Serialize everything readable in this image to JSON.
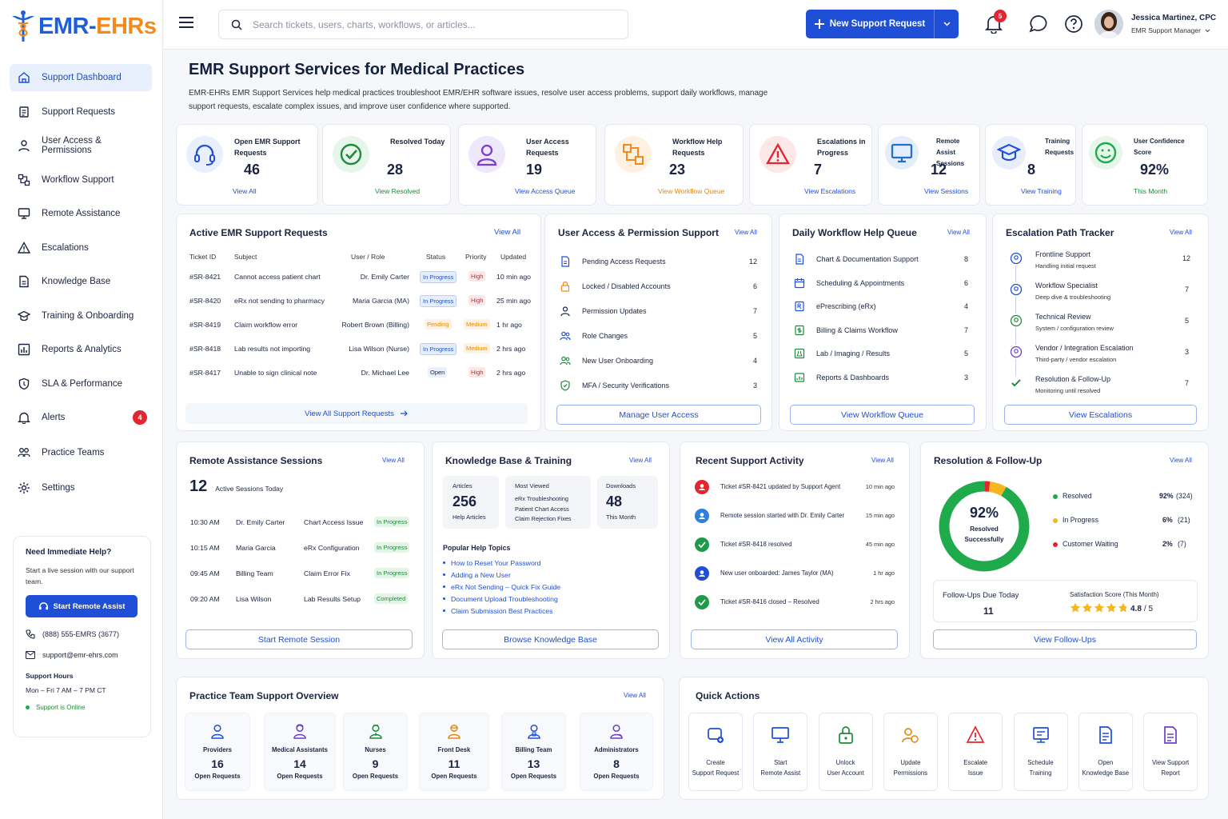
{
  "brand": {
    "name_a": "EMR-",
    "name_b": "EHRs"
  },
  "colors": {
    "primary": "#1f4fd6",
    "accent": "#f28a1e",
    "success": "#1faa4b",
    "danger": "#e3252f",
    "warning": "#f5b71f"
  },
  "sidebar": {
    "items": [
      {
        "label": "Support Dashboard",
        "icon": "home-icon"
      },
      {
        "label": "Support Requests",
        "icon": "clipboard-icon"
      },
      {
        "label": "User Access & Permissions",
        "icon": "user-icon"
      },
      {
        "label": "Workflow Support",
        "icon": "workflow-icon"
      },
      {
        "label": "Remote Assistance",
        "icon": "monitor-icon"
      },
      {
        "label": "Escalations",
        "icon": "warning-icon"
      },
      {
        "label": "Knowledge Base",
        "icon": "document-icon"
      },
      {
        "label": "Training & Onboarding",
        "icon": "graduation-icon"
      },
      {
        "label": "Reports & Analytics",
        "icon": "chart-icon"
      },
      {
        "label": "SLA & Performance",
        "icon": "shield-icon"
      },
      {
        "label": "Alerts",
        "icon": "bell-icon",
        "badge": "4"
      },
      {
        "label": "Practice Teams",
        "icon": "team-icon"
      },
      {
        "label": "Settings",
        "icon": "gear-icon"
      }
    ],
    "help": {
      "title": "Need Immediate Help?",
      "text": "Start a live session with our support team.",
      "button": "Start Remote Assist",
      "phone": "(888) 555-EMRS (3677)",
      "email": "support@emr-ehrs.com",
      "hours_title": "Support Hours",
      "hours": "Mon – Fri 7 AM – 7 PM CT",
      "status": "Support is Online"
    }
  },
  "topbar": {
    "search_placeholder": "Search tickets, users, charts, workflows, or articles...",
    "new_request": "New Support Request",
    "notifications": "5",
    "user_name": "Jessica Martinez, CPC",
    "user_role": "EMR Support Manager"
  },
  "page": {
    "title": "EMR Support Services for Medical Practices",
    "description": "EMR-EHRs EMR Support Services help medical practices troubleshoot EMR/EHR software issues, resolve user access problems, support daily workflows, manage support requests, escalate complex issues, and improve user confidence where supported."
  },
  "kpis": [
    {
      "label": "Open EMR Support Requests",
      "value": "46",
      "link": "View All",
      "color": "#1f4fd6"
    },
    {
      "label": "Resolved Today",
      "value": "28",
      "link": "View Resolved",
      "color": "#1f8a3b"
    },
    {
      "label": "User Access Requests",
      "value": "19",
      "link": "View Access Queue",
      "color": "#1f4fd6"
    },
    {
      "label": "Workflow Help Requests",
      "value": "23",
      "link": "View Workflow Queue",
      "color": "#e08a10"
    },
    {
      "label": "Escalations in Progress",
      "value": "7",
      "link": "View Escalations",
      "color": "#1f4fd6"
    },
    {
      "label": "Remote Assist Sessions",
      "value": "12",
      "link": "View Sessions",
      "color": "#1f4fd6"
    },
    {
      "label": "Training Requests",
      "value": "8",
      "link": "View Training",
      "color": "#1f4fd6"
    },
    {
      "label": "User Confidence Score",
      "value": "92%",
      "link": "This Month",
      "color": "#1f8a3b"
    }
  ],
  "active_requests": {
    "title": "Active EMR Support Requests",
    "view_all": "View All",
    "headers": [
      "Ticket ID",
      "Subject",
      "User / Role",
      "Status",
      "Priority",
      "Updated"
    ],
    "rows": [
      {
        "id": "#SR-8421",
        "subject": "Cannot access patient chart",
        "user": "Dr. Emily Carter",
        "status": "In Progress",
        "priority": "High",
        "updated": "10 min ago"
      },
      {
        "id": "#SR-8420",
        "subject": "eRx not sending to pharmacy",
        "user": "Maria Garcia (MA)",
        "status": "In Progress",
        "priority": "High",
        "updated": "25 min ago"
      },
      {
        "id": "#SR-8419",
        "subject": "Claim workflow error",
        "user": "Robert Brown (Billing)",
        "status": "Pending",
        "priority": "Medium",
        "updated": "1 hr ago"
      },
      {
        "id": "#SR-8418",
        "subject": "Lab results not importing",
        "user": "Lisa Wilson (Nurse)",
        "status": "In Progress",
        "priority": "Medium",
        "updated": "2 hrs ago"
      },
      {
        "id": "#SR-8417",
        "subject": "Unable to sign clinical note",
        "user": "Dr. Michael Lee",
        "status": "Open",
        "priority": "High",
        "updated": "2 hrs ago"
      }
    ],
    "footer": "View All Support Requests"
  },
  "access": {
    "title": "User Access & Permission Support",
    "view_all": "View All",
    "items": [
      {
        "label": "Pending Access Requests",
        "value": "12"
      },
      {
        "label": "Locked / Disabled Accounts",
        "value": "6"
      },
      {
        "label": "Permission Updates",
        "value": "7"
      },
      {
        "label": "Role Changes",
        "value": "5"
      },
      {
        "label": "New User Onboarding",
        "value": "4"
      },
      {
        "label": "MFA / Security Verifications",
        "value": "3"
      }
    ],
    "button": "Manage User Access"
  },
  "workflow": {
    "title": "Daily Workflow Help Queue",
    "view_all": "View All",
    "items": [
      {
        "label": "Chart & Documentation Support",
        "value": "8"
      },
      {
        "label": "Scheduling & Appointments",
        "value": "6"
      },
      {
        "label": "ePrescribing (eRx)",
        "value": "4"
      },
      {
        "label": "Billing & Claims Workflow",
        "value": "7"
      },
      {
        "label": "Lab / Imaging / Results",
        "value": "5"
      },
      {
        "label": "Reports & Dashboards",
        "value": "3"
      }
    ],
    "button": "View Workflow Queue"
  },
  "escalation": {
    "title": "Escalation Path Tracker",
    "view_all": "View All",
    "items": [
      {
        "label": "Frontline Support",
        "sub": "Handling initial request",
        "value": "12"
      },
      {
        "label": "Workflow Specialist",
        "sub": "Deep dive & troubleshooting",
        "value": "7"
      },
      {
        "label": "Technical Review",
        "sub": "System / configuration review",
        "value": "5"
      },
      {
        "label": "Vendor / Integration Escalation",
        "sub": "Third-party / vendor escalation",
        "value": "3"
      },
      {
        "label": "Resolution & Follow-Up",
        "sub": "Monitoring until resolved",
        "value": "7"
      }
    ],
    "button": "View Escalations"
  },
  "remote": {
    "title": "Remote Assistance Sessions",
    "view_all": "View All",
    "count": "12",
    "count_label": "Active Sessions Today",
    "rows": [
      {
        "time": "10:30 AM",
        "user": "Dr. Emily Carter",
        "topic": "Chart Access Issue",
        "status": "In Progress"
      },
      {
        "time": "10:15 AM",
        "user": "Maria Garcia",
        "topic": "eRx Configuration",
        "status": "In Progress"
      },
      {
        "time": "09:45 AM",
        "user": "Billing Team",
        "topic": "Claim Error Fix",
        "status": "In Progress"
      },
      {
        "time": "09:20 AM",
        "user": "Lisa Wilson",
        "topic": "Lab Results Setup",
        "status": "Completed"
      }
    ],
    "button": "Start Remote Session"
  },
  "kb": {
    "title": "Knowledge Base & Training",
    "view_all": "View All",
    "articles": {
      "label": "Articles",
      "value": "256",
      "sub": "Help Articles"
    },
    "most_viewed": {
      "label": "Most Viewed",
      "items": [
        "eRx Troubleshooting",
        "Patient Chart Access",
        "Claim Rejection Fixes"
      ]
    },
    "downloads": {
      "label": "Downloads",
      "value": "48",
      "sub": "This Month"
    },
    "topics_title": "Popular Help Topics",
    "topics": [
      "How to Reset Your Password",
      "Adding a New User",
      "eRx Not Sending – Quick Fix Guide",
      "Document Upload Troubleshooting",
      "Claim Submission Best Practices"
    ],
    "button": "Browse Knowledge Base"
  },
  "activity": {
    "title": "Recent Support Activity",
    "view_all": "View All",
    "items": [
      {
        "text": "Ticket #SR-8421 updated by Support Agent",
        "time": "10 min ago",
        "color": "#e3252f"
      },
      {
        "text": "Remote session started with Dr. Emily Carter",
        "time": "15 min ago",
        "color": "#2f7fe0"
      },
      {
        "text": "Ticket #SR-8418 resolved",
        "time": "45 min ago",
        "color": "#1f9a4b"
      },
      {
        "text": "New user onboarded: James Taylor (MA)",
        "time": "1 hr ago",
        "color": "#1f4fd6"
      },
      {
        "text": "Ticket #SR-8416 closed – Resolved",
        "time": "2 hrs ago",
        "color": "#1f9a4b"
      }
    ],
    "button": "View All Activity"
  },
  "resolution": {
    "title": "Resolution & Follow-Up",
    "view_all": "View All",
    "center_value": "92%",
    "center_label": "Resolved Successfully",
    "legend": [
      {
        "label": "Resolved",
        "value": "92%",
        "count": "(324)",
        "fraction": 0.92,
        "color": "#1faa4b"
      },
      {
        "label": "In Progress",
        "value": "6%",
        "count": "(21)",
        "fraction": 0.06,
        "color": "#f5b71f"
      },
      {
        "label": "Customer Waiting",
        "value": "2%",
        "count": "(7)",
        "fraction": 0.02,
        "color": "#e3252f"
      }
    ],
    "followups_label": "Follow-Ups Due Today",
    "followups_value": "11",
    "satisfaction_label": "Satisfaction Score (This Month)",
    "satisfaction_value": "4.8",
    "satisfaction_max": "/ 5",
    "stars": 4.8,
    "button": "View Follow-Ups"
  },
  "teams": {
    "title": "Practice Team Support Overview",
    "view_all": "View All",
    "items": [
      {
        "label": "Providers",
        "value": "16",
        "sub": "Open Requests",
        "color": "#1f4fd6"
      },
      {
        "label": "Medical Assistants",
        "value": "14",
        "sub": "Open Requests",
        "color": "#6a3fc8"
      },
      {
        "label": "Nurses",
        "value": "9",
        "sub": "Open Requests",
        "color": "#1f8a3b"
      },
      {
        "label": "Front Desk",
        "value": "11",
        "sub": "Open Requests",
        "color": "#e08a10"
      },
      {
        "label": "Billing Team",
        "value": "13",
        "sub": "Open Requests",
        "color": "#1f4fd6"
      },
      {
        "label": "Administrators",
        "value": "8",
        "sub": "Open Requests",
        "color": "#6a3fc8"
      }
    ]
  },
  "quick": {
    "title": "Quick Actions",
    "items": [
      {
        "l1": "Create",
        "l2": "Support Request",
        "color": "#1f4fd6"
      },
      {
        "l1": "Start",
        "l2": "Remote Assist",
        "color": "#1f4fd6"
      },
      {
        "l1": "Unlock",
        "l2": "User Account",
        "color": "#1f8a3b"
      },
      {
        "l1": "Update",
        "l2": "Permissions",
        "color": "#e08a10"
      },
      {
        "l1": "Escalate",
        "l2": "Issue",
        "color": "#e3252f"
      },
      {
        "l1": "Schedule",
        "l2": "Training",
        "color": "#1f4fd6"
      },
      {
        "l1": "Open",
        "l2": "Knowledge Base",
        "color": "#1f4fd6"
      },
      {
        "l1": "View Support",
        "l2": "Report",
        "color": "#6a3fc8"
      }
    ]
  }
}
